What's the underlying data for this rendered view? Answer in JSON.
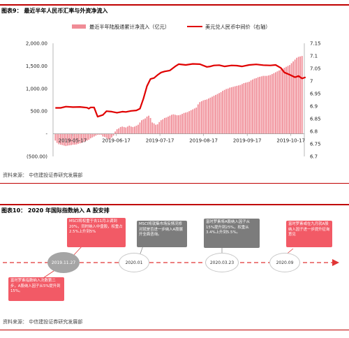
{
  "figure1": {
    "title": "图表9：  最近半年人民币汇率与外资净流入",
    "source": "资料来源：  中信建投证券研究发展部"
  },
  "figure2": {
    "title": "图表10：  2020 年国际指数纳入 A 股安排",
    "source": "资料来源：  中信建投证券研究发展部",
    "nodes": [
      {
        "label": "2019.11.27",
        "style": "gray"
      },
      {
        "label": "2020.01",
        "style": "white"
      },
      {
        "label": "2020.03.23",
        "style": "white"
      },
      {
        "label": "2020.09",
        "style": "white"
      }
    ],
    "boxes": [
      {
        "text": "MSCI将权重于去11月上调到20%，同时纳入中盘股，权重占2.5%上升到5%",
        "style": "red"
      },
      {
        "text": "富时罗素指数纳入次数第二步，A股纳入因子从5%提升到15%。",
        "style": "red"
      },
      {
        "text": "MSCI将就集市场反情况修对就是否进一步纳入A股展开全面咨询。",
        "style": "gray"
      },
      {
        "text": "富时罗素将A股纳入因子从15%提升到25%，权重从3.4%上升到5.5%。",
        "style": "gray"
      },
      {
        "text": "富时罗素或在九月就A股纳入因子进一步提升征询意见",
        "style": "red"
      }
    ]
  },
  "chart_data": {
    "type": "bar+line",
    "legend": [
      "最近半年陆股通累计净流入（亿元）",
      "美元兑人民币中间价（右轴）"
    ],
    "y_left": {
      "min": -500,
      "max": 2000,
      "ticks": [
        -500,
        0,
        500,
        1000,
        1500,
        2000
      ],
      "tick_labels": [
        "(500.00)",
        "-",
        "500.00",
        "1,000.00",
        "1,500.00",
        "2,000.00"
      ]
    },
    "y_right": {
      "min": 6.7,
      "max": 7.15,
      "ticks": [
        6.7,
        6.75,
        6.8,
        6.85,
        6.9,
        6.95,
        7.0,
        7.05,
        7.1,
        7.15
      ],
      "tick_labels": [
        "6.7",
        "6.75",
        "6.8",
        "6.85",
        "6.9",
        "6.95",
        "7",
        "7.05",
        "7.1",
        "7.15"
      ]
    },
    "x_tick_labels": [
      "2019-05-17",
      "2019-06-17",
      "2019-07-17",
      "2019-08-17",
      "2019-09-17",
      "2019-10-17"
    ],
    "bars": {
      "name": "最近半年陆股通累计净流入（亿元）",
      "color": "#f08c96",
      "values": [
        -150,
        -200,
        -230,
        -240,
        -250,
        -260,
        -270,
        -260,
        -255,
        -250,
        -240,
        -240,
        -235,
        -220,
        -210,
        -200,
        -180,
        -170,
        -150,
        -130,
        -100,
        -80,
        -60,
        -40,
        -20,
        -20,
        -20,
        -60,
        -70,
        -90,
        -120,
        -120,
        -80,
        -40,
        50,
        100,
        120,
        150,
        160,
        150,
        140,
        160,
        180,
        160,
        150,
        160,
        180,
        200,
        250,
        300,
        320,
        340,
        380,
        400,
        350,
        250,
        230,
        200,
        210,
        260,
        300,
        320,
        350,
        360,
        380,
        400,
        420,
        430,
        420,
        410,
        410,
        420,
        440,
        460,
        470,
        480,
        500,
        520,
        540,
        560,
        580,
        650,
        700,
        720,
        740,
        750,
        760,
        780,
        800,
        820,
        840,
        860,
        880,
        900,
        920,
        950,
        970,
        990,
        1000,
        1020,
        1030,
        1040,
        1050,
        1060,
        1070,
        1080,
        1100,
        1120,
        1130,
        1140,
        1150,
        1180,
        1200,
        1220,
        1230,
        1250,
        1260,
        1270,
        1280,
        1280,
        1280,
        1290,
        1300,
        1320,
        1340,
        1360,
        1380,
        1400,
        1420,
        1440,
        1460,
        1480,
        1500,
        1520,
        1560,
        1600,
        1640,
        1680,
        1700,
        1710,
        1720
      ]
    },
    "line": {
      "name": "美元兑人民币中间价（右轴）",
      "color": "#e00000",
      "points": [
        [
          0,
          6.893
        ],
        [
          3,
          6.893
        ],
        [
          6,
          6.898
        ],
        [
          10,
          6.896
        ],
        [
          14,
          6.897
        ],
        [
          18,
          6.894
        ],
        [
          19,
          6.89
        ],
        [
          20,
          6.895
        ],
        [
          22,
          6.895
        ],
        [
          24,
          6.858
        ],
        [
          27,
          6.865
        ],
        [
          29,
          6.88
        ],
        [
          32,
          6.878
        ],
        [
          35,
          6.874
        ],
        [
          38,
          6.878
        ],
        [
          40,
          6.877
        ],
        [
          43,
          6.881
        ],
        [
          46,
          6.883
        ],
        [
          48,
          6.89
        ],
        [
          50,
          6.93
        ],
        [
          52,
          6.98
        ],
        [
          54,
          7.008
        ],
        [
          56,
          7.012
        ],
        [
          58,
          7.024
        ],
        [
          60,
          7.034
        ],
        [
          62,
          7.038
        ],
        [
          65,
          7.042
        ],
        [
          68,
          7.058
        ],
        [
          70,
          7.067
        ],
        [
          74,
          7.064
        ],
        [
          78,
          7.068
        ],
        [
          82,
          7.067
        ],
        [
          86,
          7.056
        ],
        [
          88,
          7.058
        ],
        [
          90,
          7.062
        ],
        [
          93,
          7.063
        ],
        [
          96,
          7.058
        ],
        [
          100,
          7.062
        ],
        [
          103,
          7.061
        ],
        [
          106,
          7.058
        ],
        [
          110,
          7.064
        ],
        [
          114,
          7.066
        ],
        [
          118,
          7.063
        ],
        [
          122,
          7.062
        ],
        [
          125,
          7.064
        ],
        [
          128,
          7.052
        ],
        [
          130,
          7.034
        ],
        [
          133,
          7.025
        ],
        [
          136,
          7.015
        ],
        [
          138,
          7.02
        ],
        [
          140,
          7.01
        ],
        [
          142,
          7.015
        ]
      ]
    }
  }
}
